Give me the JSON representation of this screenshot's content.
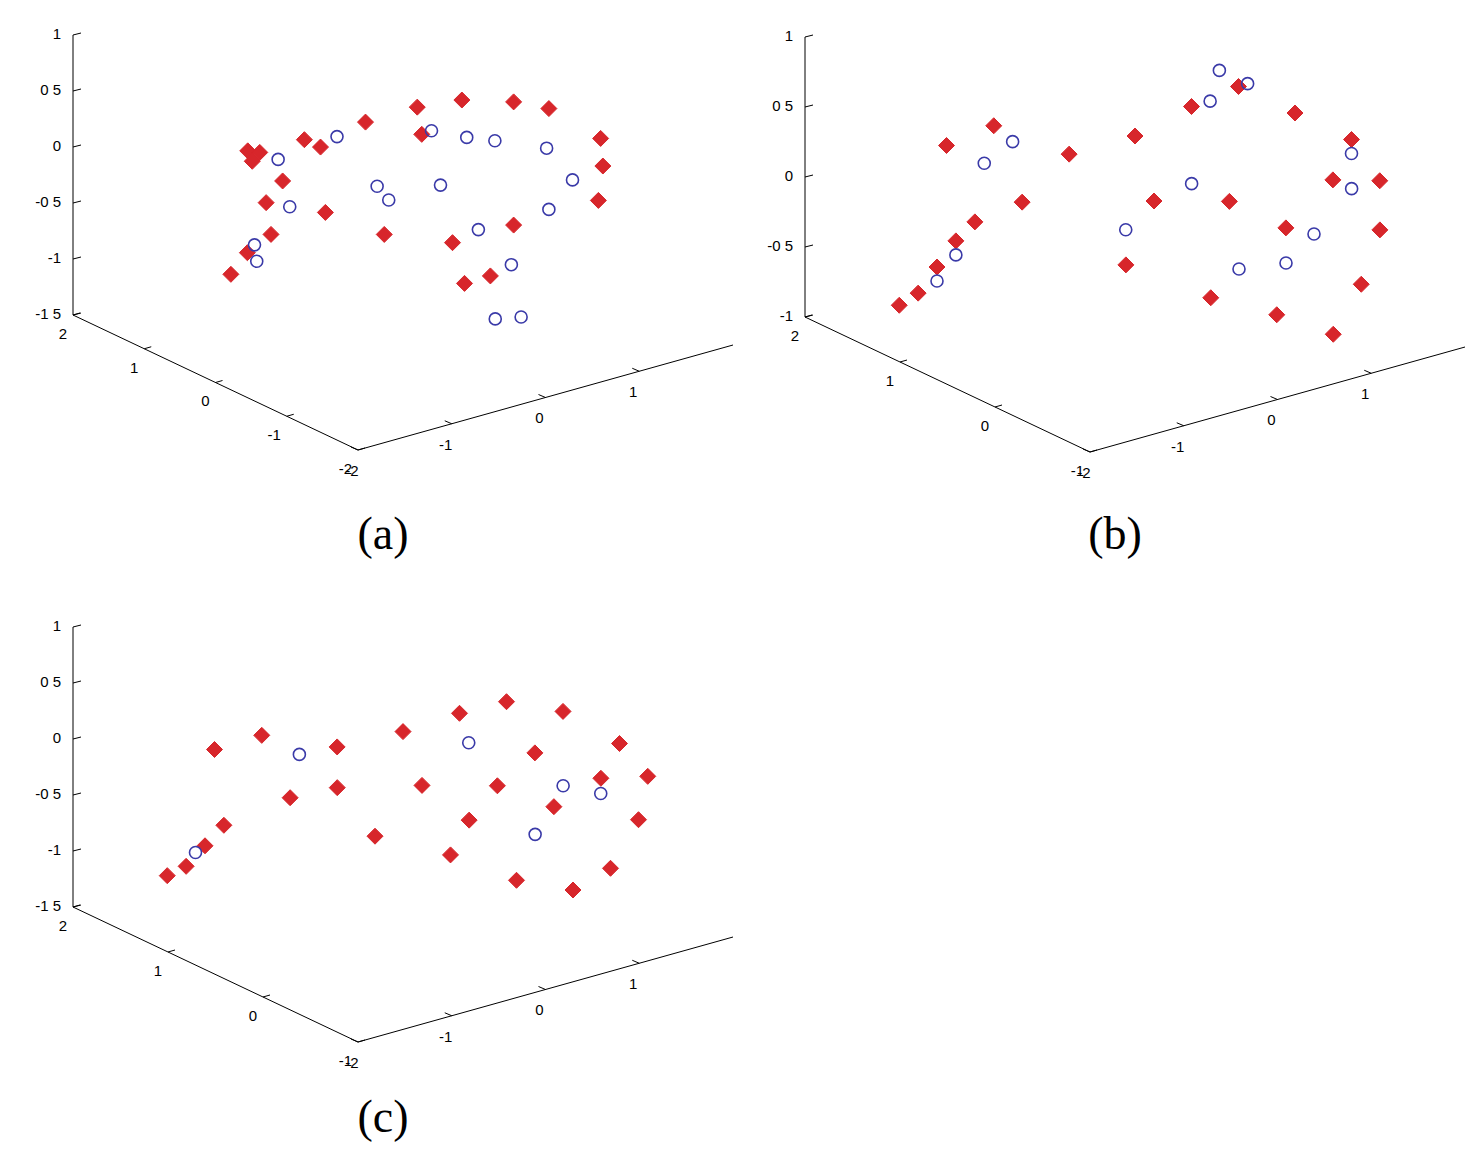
{
  "chart_data": [
    {
      "type": "scatter3d",
      "title": "(a)",
      "xlim": [
        -2,
        2
      ],
      "xticks": [
        -2,
        -1,
        0,
        1
      ],
      "ylim": [
        -2,
        2
      ],
      "yticks": [
        2,
        1,
        0,
        -1,
        -2
      ],
      "zlim": [
        -1.5,
        1
      ],
      "zticks": [
        1,
        {
          "value": 0.5,
          "label": "0 5"
        },
        0,
        {
          "value": -0.5,
          "label": "-0 5"
        },
        -1,
        {
          "value": -1.5,
          "label": "-1 5"
        }
      ],
      "series": [
        {
          "color": "#d7262b",
          "marker": "diamond",
          "points": [
            [
              -1.2,
              0.6,
              0.2
            ],
            [
              -1.0,
              0.8,
              0.0
            ],
            [
              -1.3,
              0.3,
              0.3
            ],
            [
              -0.9,
              0.2,
              0.35
            ],
            [
              -0.4,
              0.0,
              0.45
            ],
            [
              0.0,
              -0.2,
              0.55
            ],
            [
              0.4,
              -0.3,
              0.55
            ],
            [
              0.8,
              -0.5,
              0.5
            ],
            [
              1.1,
              -0.6,
              0.4
            ],
            [
              1.5,
              -0.8,
              0.1
            ],
            [
              1.6,
              -0.7,
              -0.2
            ],
            [
              1.4,
              -0.9,
              -0.4
            ],
            [
              0.8,
              -0.5,
              -0.6
            ],
            [
              0.3,
              -0.3,
              -0.7
            ],
            [
              -0.2,
              0.0,
              -0.6
            ],
            [
              -0.6,
              0.3,
              -0.4
            ],
            [
              0.2,
              -0.6,
              -0.95
            ],
            [
              0.4,
              -0.7,
              -0.9
            ],
            [
              -0.9,
              1.0,
              -0.9
            ],
            [
              -1.0,
              1.1,
              -1.1
            ],
            [
              -0.8,
              0.8,
              -0.7
            ],
            [
              -0.7,
              1.0,
              -0.5
            ],
            [
              -0.6,
              0.9,
              -0.3
            ],
            [
              -0.5,
              0.5,
              0.1
            ],
            [
              0.2,
              0.0,
              0.2
            ]
          ]
        },
        {
          "color": "#3a3aa8",
          "marker": "circle",
          "points": [
            [
              -0.8,
              0.7,
              0.0
            ],
            [
              -0.9,
              0.9,
              -0.8
            ],
            [
              -0.8,
              1.0,
              -1.0
            ],
            [
              -0.6,
              0.8,
              -0.5
            ],
            [
              0.0,
              -0.4,
              0.4
            ],
            [
              0.3,
              -0.5,
              0.3
            ],
            [
              0.6,
              -0.5,
              0.2
            ],
            [
              1.0,
              -0.7,
              0.1
            ],
            [
              1.2,
              -0.8,
              -0.2
            ],
            [
              1.1,
              -0.6,
              -0.5
            ],
            [
              0.4,
              0.0,
              -0.3
            ],
            [
              0.0,
              0.2,
              -0.4
            ],
            [
              -0.2,
              0.1,
              -0.2
            ],
            [
              0.5,
              -0.4,
              -0.6
            ],
            [
              0.3,
              -0.9,
              -1.2
            ],
            [
              0.5,
              -1.0,
              -1.2
            ],
            [
              0.7,
              -0.6,
              -0.9
            ],
            [
              -0.4,
              0.4,
              0.2
            ]
          ]
        }
      ]
    },
    {
      "type": "scatter3d",
      "title": "(b)",
      "xlim": [
        -2,
        2
      ],
      "xticks": [
        -2,
        -1,
        0,
        1
      ],
      "ylim": [
        -1,
        2
      ],
      "yticks": [
        2,
        1,
        0,
        -1
      ],
      "zlim": [
        -1,
        1
      ],
      "zticks": [
        1,
        {
          "value": 0.5,
          "label": "0 5"
        },
        0,
        {
          "value": -0.5,
          "label": "-0 5"
        },
        -1
      ],
      "series": [
        {
          "color": "#d7262b",
          "marker": "diamond",
          "points": [
            [
              -1.0,
              1.0,
              0.5
            ],
            [
              -1.2,
              1.3,
              0.3
            ],
            [
              -0.9,
              0.8,
              0.0
            ],
            [
              -1.1,
              1.1,
              -0.2
            ],
            [
              -0.5,
              0.7,
              0.3
            ],
            [
              0.0,
              0.5,
              0.4
            ],
            [
              0.4,
              0.3,
              0.6
            ],
            [
              0.8,
              0.2,
              0.7
            ],
            [
              1.2,
              0.0,
              0.5
            ],
            [
              1.6,
              -0.2,
              0.3
            ],
            [
              1.8,
              -0.3,
              0.0
            ],
            [
              1.7,
              -0.4,
              -0.3
            ],
            [
              1.4,
              -0.5,
              -0.6
            ],
            [
              1.0,
              -0.6,
              -0.85
            ],
            [
              0.6,
              -0.4,
              -0.7
            ],
            [
              0.2,
              -0.1,
              -0.6
            ],
            [
              -0.3,
              0.3,
              -0.4
            ],
            [
              0.9,
              -0.2,
              -0.2
            ],
            [
              0.5,
              0.0,
              0.0
            ],
            [
              0.0,
              0.3,
              0.0
            ],
            [
              1.3,
              -0.3,
              0.1
            ],
            [
              -1.3,
              1.5,
              -0.8
            ],
            [
              -1.2,
              1.4,
              -0.6
            ],
            [
              -1.1,
              1.3,
              -0.4
            ],
            [
              -1.4,
              1.6,
              -0.9
            ]
          ]
        },
        {
          "color": "#3a3aa8",
          "marker": "circle",
          "points": [
            [
              -1.0,
              1.1,
              0.2
            ],
            [
              -1.2,
              1.4,
              -0.7
            ],
            [
              -1.1,
              1.3,
              -0.5
            ],
            [
              -0.9,
              0.9,
              0.4
            ],
            [
              0.9,
              0.5,
              0.7
            ],
            [
              1.1,
              0.4,
              0.6
            ],
            [
              0.7,
              0.4,
              0.55
            ],
            [
              0.3,
              0.2,
              0.1
            ],
            [
              -0.2,
              0.4,
              -0.2
            ],
            [
              0.8,
              -0.3,
              -0.4
            ],
            [
              1.5,
              -0.3,
              0.0
            ],
            [
              1.2,
              -0.2,
              -0.3
            ],
            [
              0.4,
              -0.2,
              -0.4
            ],
            [
              1.6,
              -0.2,
              0.2
            ]
          ]
        }
      ]
    },
    {
      "type": "scatter3d",
      "title": "(c)",
      "xlim": [
        -2,
        2
      ],
      "xticks": [
        -2,
        -1,
        0,
        1
      ],
      "ylim": [
        -1,
        2
      ],
      "yticks": [
        2,
        1,
        0,
        -1
      ],
      "zlim": [
        -1.5,
        1
      ],
      "zticks": [
        1,
        {
          "value": 0.5,
          "label": "0 5"
        },
        0,
        {
          "value": -0.5,
          "label": "-0 5"
        },
        -1,
        {
          "value": -1.5,
          "label": "-1 5"
        }
      ],
      "series": [
        {
          "color": "#d7262b",
          "marker": "diamond",
          "points": [
            [
              -1.0,
              1.0,
              0.2
            ],
            [
              -1.2,
              1.3,
              0.0
            ],
            [
              -0.9,
              0.8,
              -0.3
            ],
            [
              -0.5,
              0.7,
              0.1
            ],
            [
              0.0,
              0.5,
              0.2
            ],
            [
              0.4,
              0.3,
              0.35
            ],
            [
              0.8,
              0.2,
              0.4
            ],
            [
              1.2,
              0.0,
              0.3
            ],
            [
              1.6,
              -0.2,
              0.0
            ],
            [
              1.8,
              -0.3,
              -0.3
            ],
            [
              1.6,
              -0.4,
              -0.6
            ],
            [
              1.2,
              -0.5,
              -0.9
            ],
            [
              0.8,
              -0.5,
              -1.0
            ],
            [
              0.4,
              -0.3,
              -0.9
            ],
            [
              0.0,
              0.0,
              -0.7
            ],
            [
              -0.4,
              0.4,
              -0.6
            ],
            [
              0.9,
              -0.2,
              -0.4
            ],
            [
              0.5,
              0.0,
              -0.2
            ],
            [
              0.0,
              0.3,
              -0.2
            ],
            [
              1.3,
              -0.3,
              -0.2
            ],
            [
              0.3,
              0.1,
              -0.5
            ],
            [
              0.9,
              0.0,
              0.0
            ],
            [
              -0.6,
              0.6,
              -0.2
            ],
            [
              -1.3,
              1.5,
              -1.1
            ],
            [
              -1.2,
              1.4,
              -0.9
            ],
            [
              -1.1,
              1.3,
              -0.7
            ],
            [
              -1.4,
              1.6,
              -1.2
            ]
          ]
        },
        {
          "color": "#3a3aa8",
          "marker": "circle",
          "points": [
            [
              -0.7,
              0.9,
              0.0
            ],
            [
              -1.2,
              1.5,
              -1.0
            ],
            [
              0.6,
              0.4,
              0.0
            ],
            [
              1.1,
              -0.1,
              -0.3
            ],
            [
              1.4,
              -0.2,
              -0.4
            ],
            [
              0.7,
              -0.2,
              -0.6
            ]
          ]
        }
      ]
    }
  ]
}
